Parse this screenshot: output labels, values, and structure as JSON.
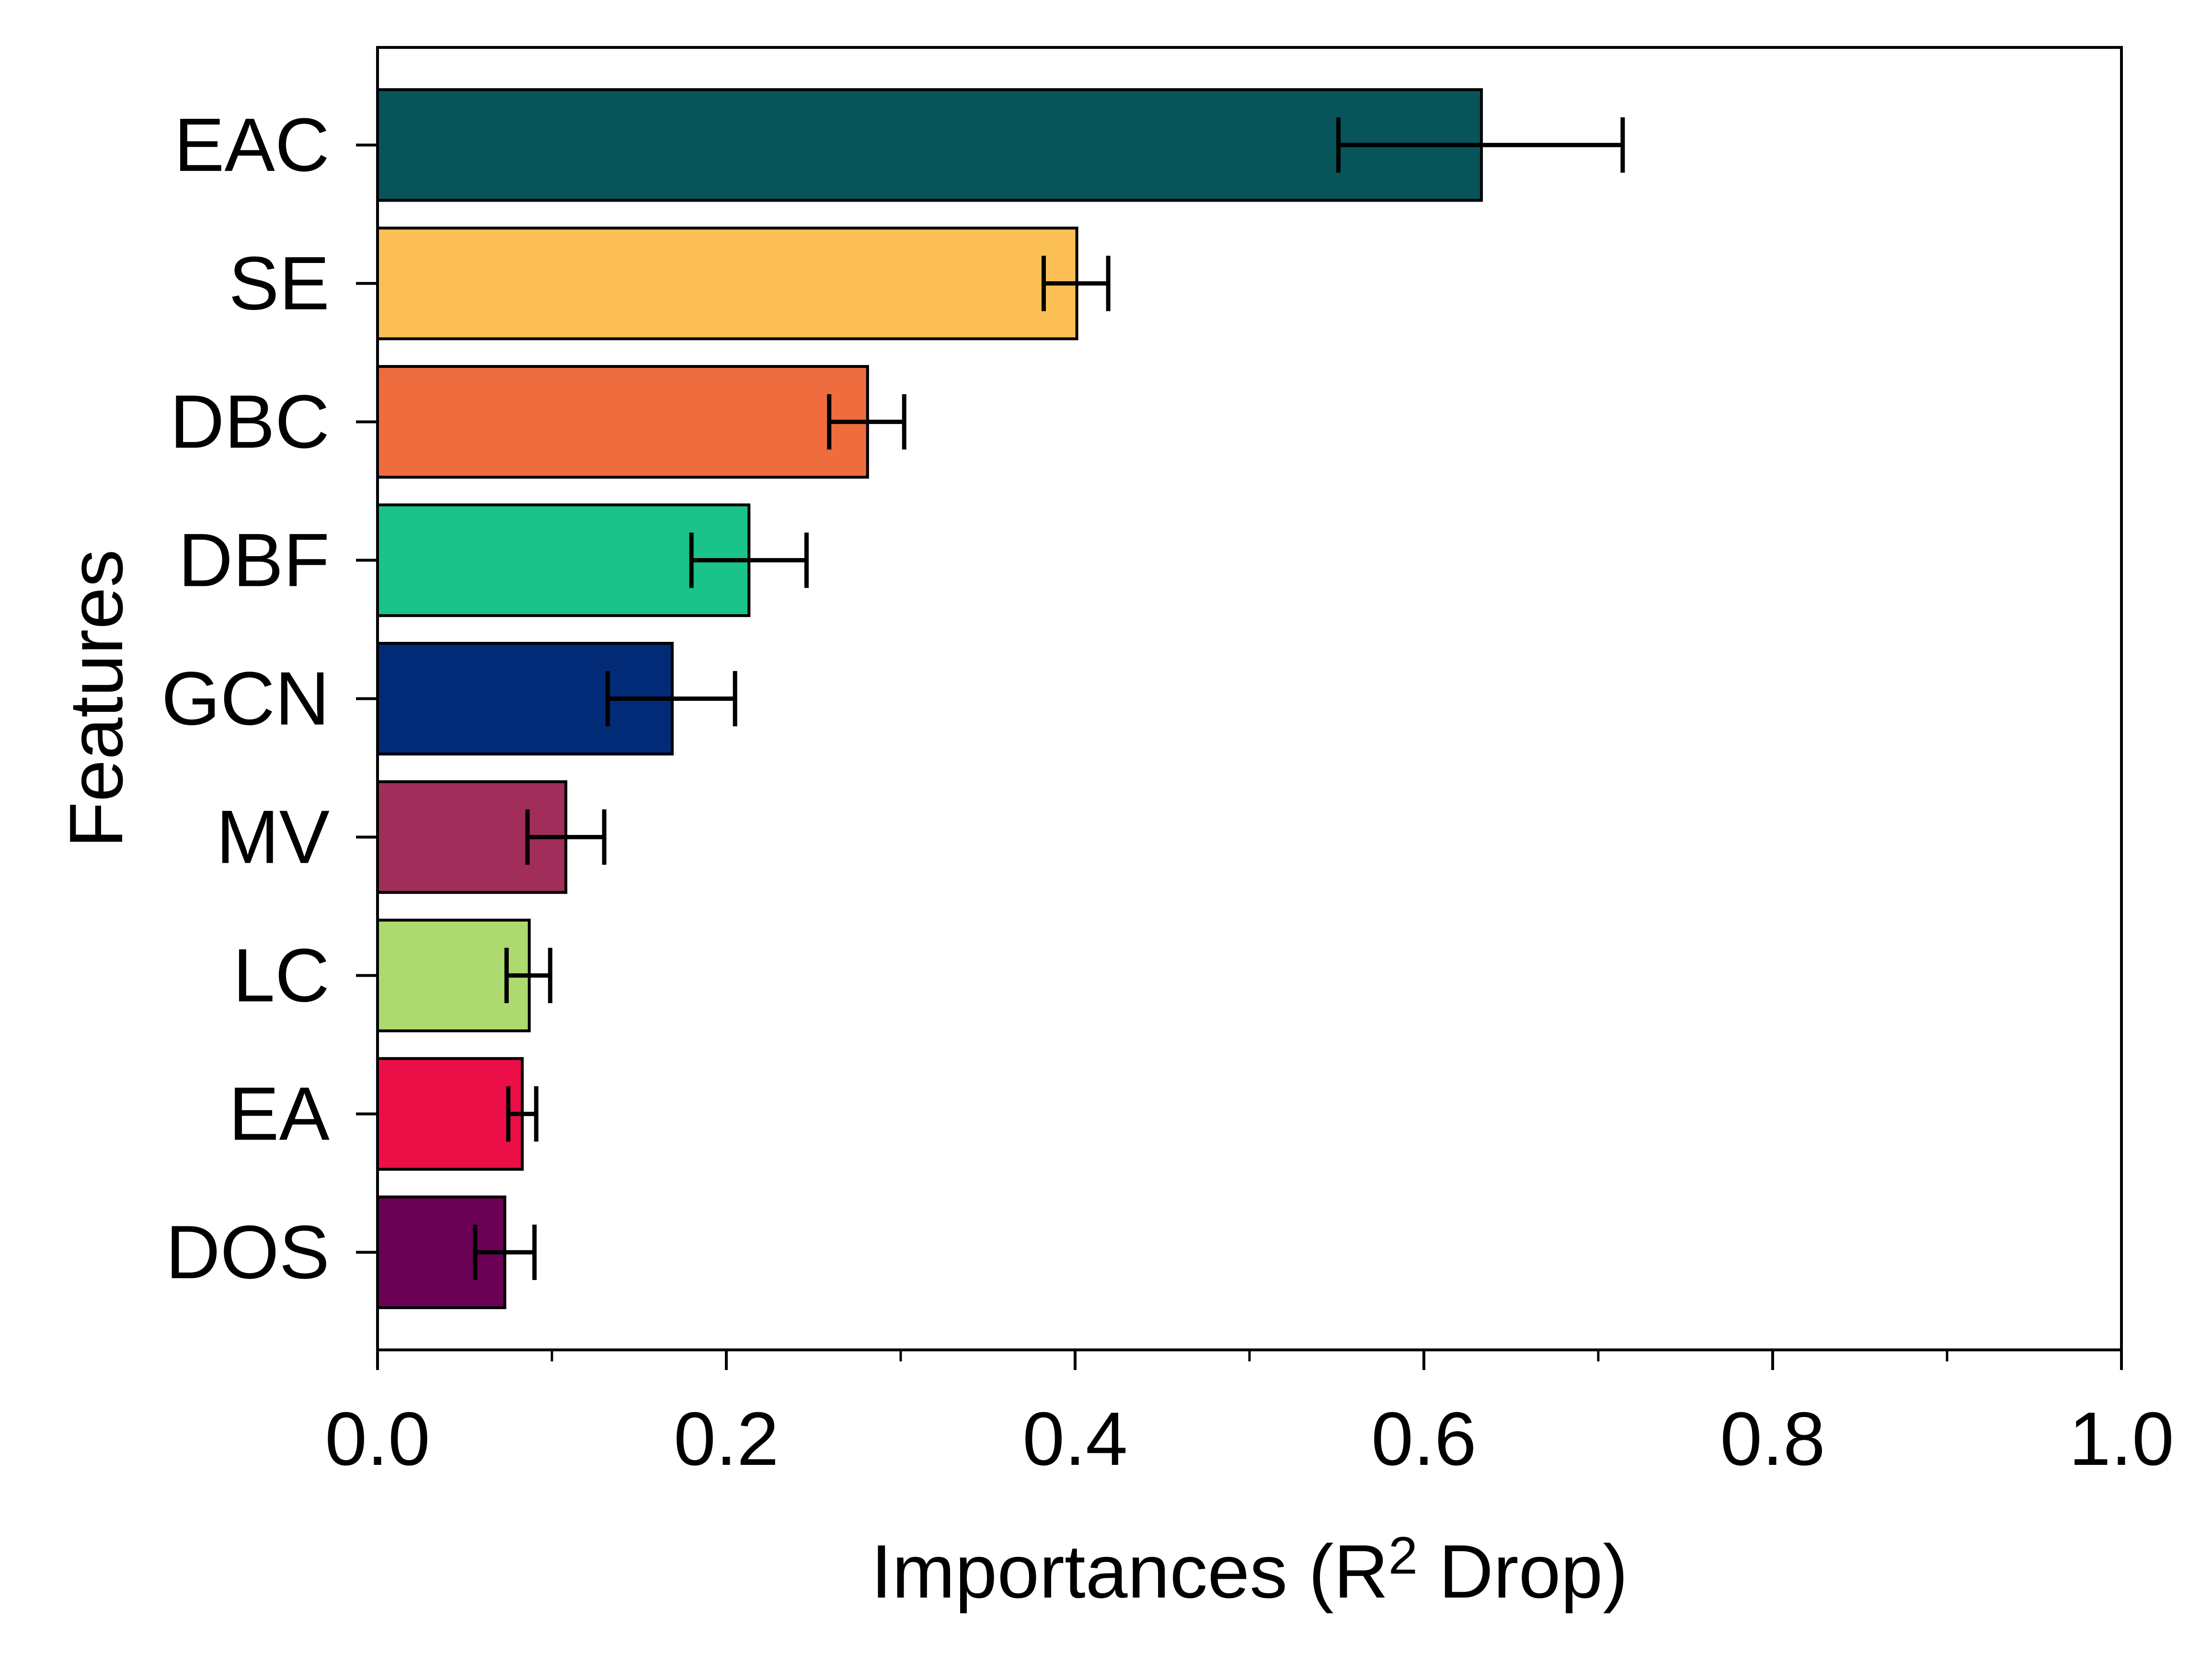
{
  "chart_data": {
    "type": "bar",
    "orientation": "horizontal",
    "title": "",
    "xlabel": {
      "pre": "Importances (R",
      "sup": "2",
      "post": " Drop)"
    },
    "ylabel": "Features",
    "xlim": [
      0,
      1.0
    ],
    "xticks_major": [
      {
        "value": 0.0,
        "label": "0.0"
      },
      {
        "value": 0.2,
        "label": "0.2"
      },
      {
        "value": 0.4,
        "label": "0.4"
      },
      {
        "value": 0.6,
        "label": "0.6"
      },
      {
        "value": 0.8,
        "label": "0.8"
      },
      {
        "value": 1.0,
        "label": "1.0"
      }
    ],
    "xticks_minor": [
      0.1,
      0.3,
      0.5,
      0.7,
      0.9
    ],
    "grid": false,
    "bars": [
      {
        "label": "EAC",
        "value": 0.633,
        "err_low": 0.551,
        "err_high": 0.714,
        "color": "#07555A"
      },
      {
        "label": "SE",
        "value": 0.401,
        "err_low": 0.382,
        "err_high": 0.419,
        "color": "#FBBF56"
      },
      {
        "label": "DBC",
        "value": 0.281,
        "err_low": 0.259,
        "err_high": 0.302,
        "color": "#EE6C3E"
      },
      {
        "label": "DBF",
        "value": 0.213,
        "err_low": 0.18,
        "err_high": 0.246,
        "color": "#19C389"
      },
      {
        "label": "GCN",
        "value": 0.169,
        "err_low": 0.132,
        "err_high": 0.205,
        "color": "#022B77"
      },
      {
        "label": "MV",
        "value": 0.108,
        "err_low": 0.086,
        "err_high": 0.13,
        "color": "#A12D5A"
      },
      {
        "label": "LC",
        "value": 0.087,
        "err_low": 0.074,
        "err_high": 0.099,
        "color": "#AED96E"
      },
      {
        "label": "EA",
        "value": 0.083,
        "err_low": 0.075,
        "err_high": 0.091,
        "color": "#EC0F47"
      },
      {
        "label": "DOS",
        "value": 0.073,
        "err_low": 0.056,
        "err_high": 0.09,
        "color": "#6B0155"
      }
    ]
  }
}
